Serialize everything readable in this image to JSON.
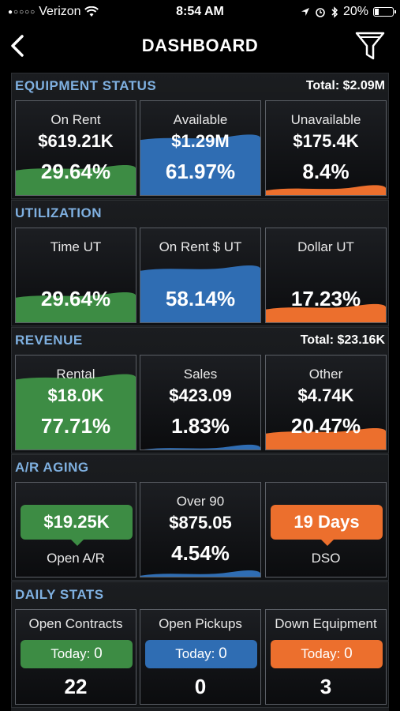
{
  "status_bar": {
    "carrier": "Verizon",
    "time": "8:54 AM",
    "battery": "20%"
  },
  "nav": {
    "title": "DASHBOARD",
    "icons": [
      "chevron-left-icon",
      "filter-icon"
    ]
  },
  "colors": {
    "green": "#3d8c44",
    "blue": "#2f6db3",
    "orange": "#ec6f2d",
    "header": "#7fb0e0"
  },
  "equipment_status": {
    "title": "EQUIPMENT STATUS",
    "total": "Total: $2.09M",
    "tiles": [
      {
        "label": "On Rent",
        "value": "$619.21K",
        "pct": "29.64%",
        "level": 0.2964,
        "color": "green"
      },
      {
        "label": "Available",
        "value": "$1.29M",
        "pct": "61.97%",
        "level": 0.6197,
        "color": "blue"
      },
      {
        "label": "Unavailable",
        "value": "$175.4K",
        "pct": "8.4%",
        "level": 0.084,
        "color": "orange"
      }
    ]
  },
  "utilization": {
    "title": "UTILIZATION",
    "tiles": [
      {
        "label": "Time UT",
        "pct": "29.64%",
        "level": 0.2964,
        "color": "green"
      },
      {
        "label": "On Rent $ UT",
        "pct": "58.14%",
        "level": 0.5814,
        "color": "blue"
      },
      {
        "label": "Dollar UT",
        "pct": "17.23%",
        "level": 0.1723,
        "color": "orange"
      }
    ]
  },
  "revenue": {
    "title": "REVENUE",
    "total": "Total: $23.16K",
    "tiles": [
      {
        "label": "Rental",
        "value": "$18.0K",
        "pct": "77.71%",
        "level": 0.7771,
        "color": "green"
      },
      {
        "label": "Sales",
        "value": "$423.09",
        "pct": "1.83%",
        "level": 0.0183,
        "color": "blue"
      },
      {
        "label": "Other",
        "value": "$4.74K",
        "pct": "20.47%",
        "level": 0.2047,
        "color": "orange"
      }
    ]
  },
  "ar_aging": {
    "title": "A/R AGING",
    "open_ar": {
      "value": "$19.25K",
      "caption": "Open A/R"
    },
    "over_90": {
      "label": "Over 90",
      "value": "$875.05",
      "pct": "4.54%",
      "level": 0.0454,
      "color": "blue"
    },
    "dso": {
      "value": "19 Days",
      "caption": "DSO"
    }
  },
  "daily_stats": {
    "title": "DAILY STATS",
    "tiles": [
      {
        "label": "Open Contracts",
        "today_label": "Today:",
        "today_value": "0",
        "total": "22",
        "color": "green"
      },
      {
        "label": "Open Pickups",
        "today_label": "Today:",
        "today_value": "0",
        "total": "0",
        "color": "blue"
      },
      {
        "label": "Down Equipment",
        "today_label": "Today:",
        "today_value": "0",
        "total": "3",
        "color": "orange"
      }
    ]
  }
}
